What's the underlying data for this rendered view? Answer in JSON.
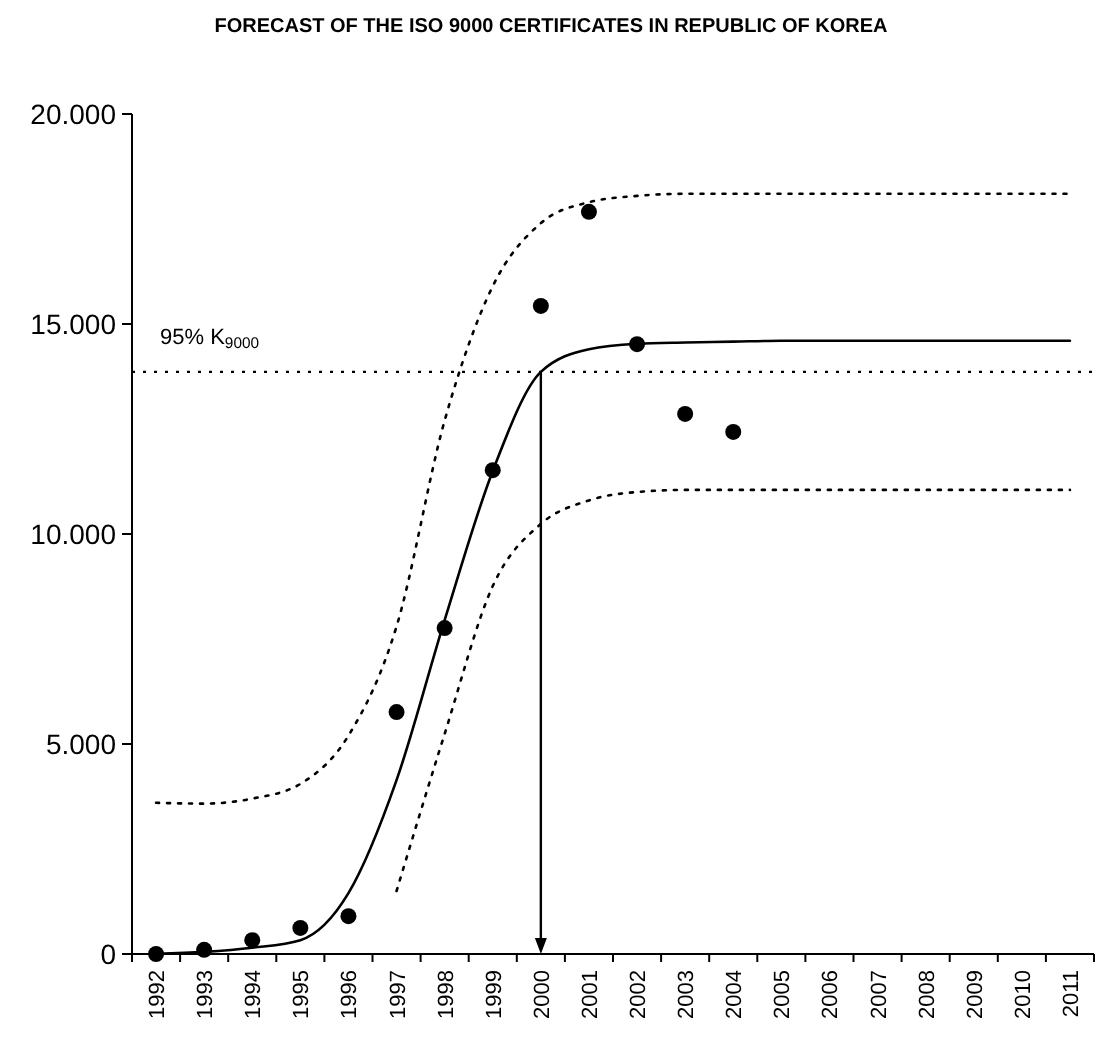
{
  "chart_data": {
    "type": "line",
    "title": "FORECAST OF THE ISO 9000 CERTIFICATES IN REPUBLIC OF KOREA",
    "categories": [
      "1992",
      "1993",
      "1994",
      "1995",
      "1996",
      "1997",
      "1998",
      "1999",
      "2000",
      "2001",
      "2002",
      "2003",
      "2004",
      "2005",
      "2006",
      "2007",
      "2008",
      "2009",
      "2010",
      "2011"
    ],
    "ylim": [
      0,
      20000
    ],
    "yticks": [
      0,
      {
        "value": 5000,
        "label": "5.000"
      },
      {
        "value": 10000,
        "label": "10.000"
      },
      {
        "value": 15000,
        "label": "15.000"
      },
      {
        "value": 20000,
        "label": "20.000"
      }
    ],
    "grid": false,
    "series": [
      {
        "color": "#000000",
        "line_style": "dotted",
        "values": [
          3600,
          3580,
          3700,
          4050,
          5200,
          7800,
          12700,
          15900,
          17400,
          17900,
          18050,
          18100,
          18100,
          18100,
          18100,
          18100,
          18100,
          18100,
          18100,
          18100
        ]
      },
      {
        "color": "#000000",
        "line_style": "solid",
        "values": [
          0,
          50,
          150,
          330,
          1450,
          4140,
          7950,
          11500,
          13860,
          14400,
          14530,
          14560,
          14580,
          14600,
          14600,
          14600,
          14600,
          14600,
          14600,
          14600
        ]
      },
      {
        "color": "#000000",
        "line_style": "dotted",
        "values": [
          null,
          null,
          null,
          null,
          null,
          1500,
          5240,
          8760,
          10240,
          10800,
          11000,
          11050,
          11050,
          11050,
          11050,
          11050,
          11050,
          11050,
          11050,
          11050
        ]
      },
      {
        "type": "scatter",
        "color": "#000000",
        "marker": "circle",
        "values": [
          0,
          100,
          330,
          620,
          900,
          5760,
          7760,
          11520,
          15430,
          17670,
          14520,
          12860,
          12430,
          null,
          null,
          null,
          null,
          null,
          null,
          null
        ]
      }
    ],
    "ref_lines": [
      {
        "axis": "y",
        "value": 13860,
        "label": "95% K$_{9000}$",
        "line_style": "dotted",
        "color": "#000000"
      },
      {
        "axis": "x",
        "value": "2000",
        "line_style": "solid",
        "color": "#000000"
      }
    ]
  }
}
